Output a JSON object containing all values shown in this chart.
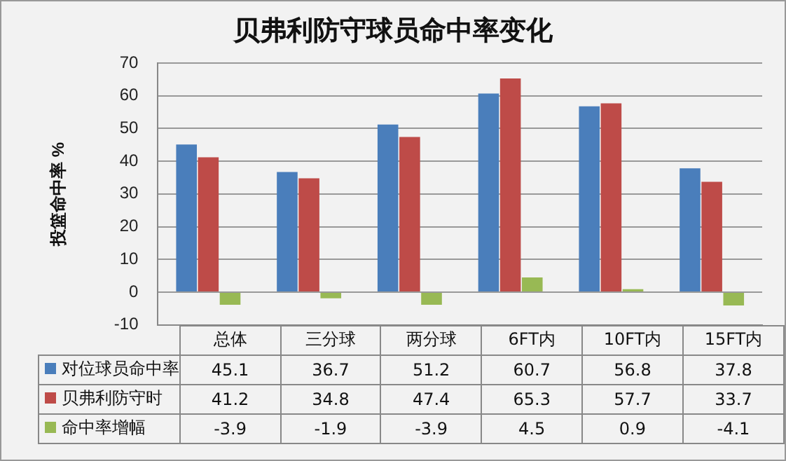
{
  "chart_data": {
    "type": "bar",
    "title": "贝弗利防守球员命中率变化",
    "ylabel": "投篮命中率 %",
    "categories": [
      "总体",
      "三分球",
      "两分球",
      "6FT内",
      "10FT内",
      "15FT内"
    ],
    "series": [
      {
        "name": "对位球员命中率",
        "color": "#4a7ebb",
        "values": [
          45.1,
          36.7,
          51.2,
          60.7,
          56.8,
          37.8
        ]
      },
      {
        "name": "贝弗利防守时",
        "color": "#be4b48",
        "values": [
          41.2,
          34.8,
          47.4,
          65.3,
          57.7,
          33.7
        ]
      },
      {
        "name": "命中率增幅",
        "color": "#98b954",
        "values": [
          -3.9,
          -1.9,
          -3.9,
          4.5,
          0.9,
          -4.1
        ]
      }
    ],
    "ylim": [
      -10,
      70
    ],
    "yticks": [
      -10,
      0,
      10,
      20,
      30,
      40,
      50,
      60,
      70
    ],
    "grid": "y",
    "legend": "bottom",
    "data_labels": true
  }
}
